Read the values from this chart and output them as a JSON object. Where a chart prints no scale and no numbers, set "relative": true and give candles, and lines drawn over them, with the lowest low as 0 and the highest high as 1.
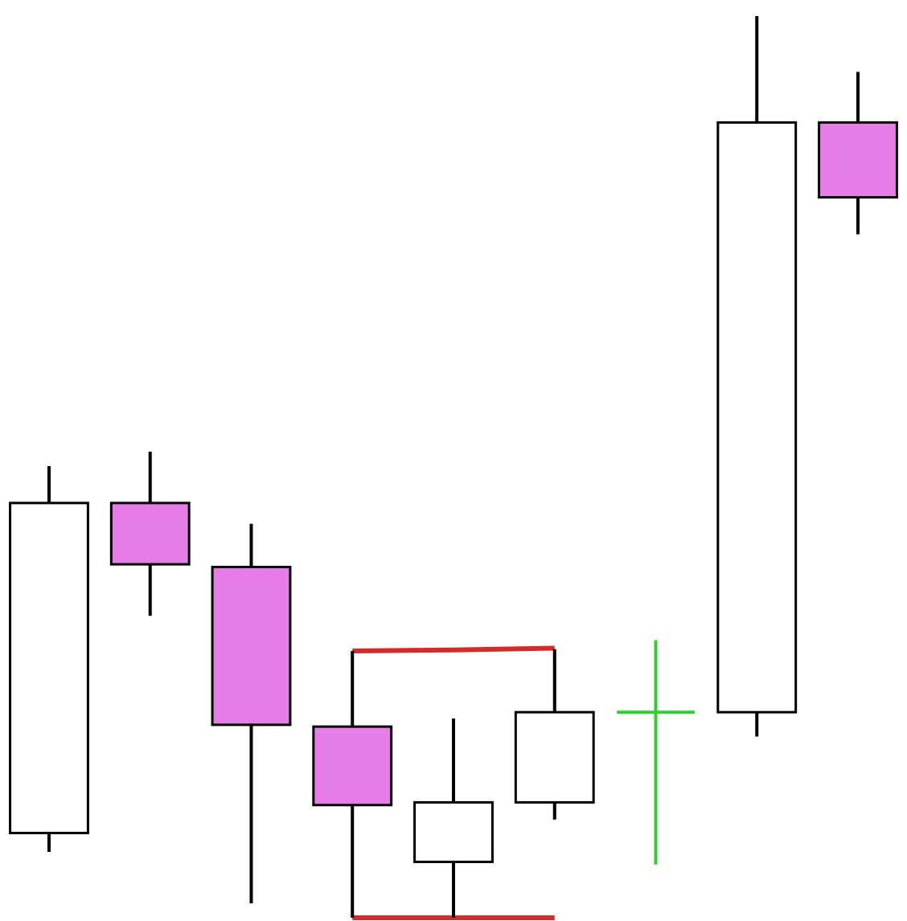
{
  "chart_data": {
    "type": "candlestick",
    "relative": true,
    "categories": [
      null,
      null,
      null,
      null,
      null,
      null,
      null,
      null,
      null
    ],
    "ohlc": [
      [
        0.094,
        0.501,
        0.073,
        0.46
      ],
      [
        0.46,
        0.517,
        0.335,
        0.392
      ],
      [
        0.389,
        0.437,
        0.016,
        0.214
      ],
      [
        0.212,
        0.296,
        0,
        0.125
      ],
      [
        0.062,
        0.221,
        0,
        0.128
      ],
      [
        0.128,
        0.298,
        0.109,
        0.228
      ],
      [
        0.228,
        0.308,
        0.059,
        0.228
      ],
      [
        0.228,
        1,
        0.201,
        0.882
      ],
      [
        0.882,
        0.938,
        0.758,
        0.799
      ]
    ],
    "colors": [
      "#ffffff",
      "#e77ee7",
      "#e77ee7",
      "#e77ee7",
      "#ffffff",
      "#ffffff",
      "#33cc33",
      "#ffffff",
      "#e77ee7"
    ],
    "series": [
      {
        "type": "line",
        "color": "#d42a2a",
        "values": [
          null,
          null,
          null,
          0.296,
          0.297,
          0.299,
          null,
          null,
          null
        ]
      },
      {
        "type": "line",
        "color": "#d42a2a",
        "values": [
          null,
          null,
          null,
          0,
          0,
          0,
          null,
          null,
          null
        ]
      }
    ]
  }
}
